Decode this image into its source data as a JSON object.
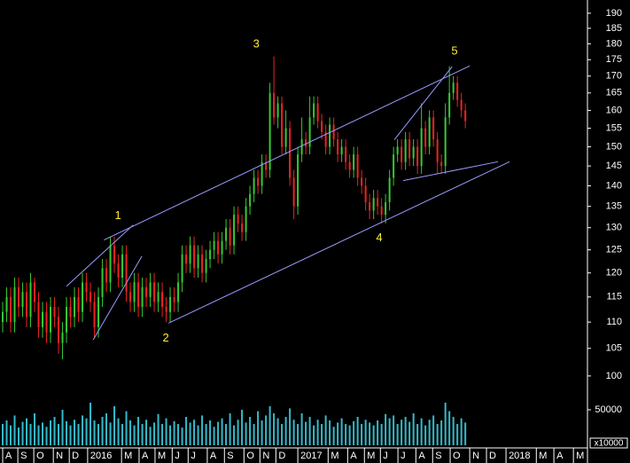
{
  "chart_data": {
    "type": "ohlc",
    "log_scale": true,
    "ylim": [
      97.5,
      194.5
    ],
    "yticks": [
      100,
      105,
      110,
      115,
      120,
      125,
      130,
      135,
      140,
      145,
      150,
      155,
      160,
      165,
      170,
      175,
      180,
      185,
      190
    ],
    "xlim": [
      -0.67,
      146.4
    ],
    "xticks": [
      {
        "value": 0,
        "label": "A"
      },
      {
        "value": 3.8,
        "label": "S"
      },
      {
        "value": 7.8,
        "label": "O"
      },
      {
        "value": 12.7,
        "label": "N"
      },
      {
        "value": 16.7,
        "label": "D"
      },
      {
        "value": 21.3,
        "label": "2016"
      },
      {
        "value": 29.8,
        "label": "M"
      },
      {
        "value": 34.2,
        "label": "A"
      },
      {
        "value": 38.2,
        "label": "M"
      },
      {
        "value": 42.5,
        "label": "J"
      },
      {
        "value": 46.5,
        "label": "J"
      },
      {
        "value": 51.3,
        "label": "A"
      },
      {
        "value": 55.6,
        "label": "S"
      },
      {
        "value": 60.5,
        "label": "O"
      },
      {
        "value": 64.5,
        "label": "N"
      },
      {
        "value": 68.5,
        "label": "D"
      },
      {
        "value": 74,
        "label": "2017"
      },
      {
        "value": 81.6,
        "label": "M"
      },
      {
        "value": 86.5,
        "label": "A"
      },
      {
        "value": 90.7,
        "label": "M"
      },
      {
        "value": 94.7,
        "label": "J"
      },
      {
        "value": 99.1,
        "label": "J"
      },
      {
        "value": 103.6,
        "label": "A"
      },
      {
        "value": 107.8,
        "label": "S"
      },
      {
        "value": 112.2,
        "label": "O"
      },
      {
        "value": 117.1,
        "label": "N"
      },
      {
        "value": 121.3,
        "label": "D"
      },
      {
        "value": 126.2,
        "label": "2018"
      },
      {
        "value": 133.8,
        "label": "M"
      },
      {
        "value": 138.2,
        "label": "A"
      },
      {
        "value": 143.1,
        "label": "M"
      }
    ],
    "up_color": "#33cc33",
    "down_color": "#ee2222",
    "bars": [
      [
        110,
        114,
        108,
        112
      ],
      [
        112,
        117,
        110,
        115
      ],
      [
        115,
        117,
        108,
        110
      ],
      [
        110,
        119,
        108,
        117
      ],
      [
        117,
        119,
        111,
        113
      ],
      [
        113,
        118,
        111,
        116
      ],
      [
        116,
        118,
        109,
        111
      ],
      [
        111,
        120,
        109,
        118
      ],
      [
        118,
        119,
        112,
        114
      ],
      [
        114,
        116,
        107,
        109
      ],
      [
        109,
        114,
        107,
        112
      ],
      [
        112,
        114,
        106,
        108
      ],
      [
        108,
        115,
        106,
        113
      ],
      [
        113,
        115,
        109,
        111
      ],
      [
        111,
        113,
        104,
        106
      ],
      [
        106,
        110,
        103,
        108
      ],
      [
        108,
        115,
        106,
        113
      ],
      [
        113,
        115,
        109,
        111
      ],
      [
        111,
        117,
        109,
        115
      ],
      [
        115,
        117,
        110,
        112
      ],
      [
        112,
        120,
        110,
        118
      ],
      [
        118,
        120,
        114,
        116
      ],
      [
        116,
        118,
        112,
        114
      ],
      [
        114,
        116,
        107,
        109
      ],
      [
        109,
        117,
        107,
        115
      ],
      [
        115,
        123,
        113,
        121
      ],
      [
        121,
        123,
        116,
        118
      ],
      [
        118,
        128,
        116,
        126
      ],
      [
        126,
        128,
        120,
        122
      ],
      [
        122,
        124,
        117,
        119
      ],
      [
        119,
        126,
        117,
        124
      ],
      [
        124,
        126,
        114,
        116
      ],
      [
        116,
        118,
        112,
        114
      ],
      [
        114,
        120,
        112,
        118
      ],
      [
        118,
        120,
        111,
        113
      ],
      [
        113,
        119,
        111,
        117
      ],
      [
        117,
        119,
        113,
        115
      ],
      [
        115,
        120,
        113,
        118
      ],
      [
        118,
        120,
        112,
        114
      ],
      [
        114,
        118,
        112,
        116
      ],
      [
        116,
        118,
        111,
        113
      ],
      [
        113,
        115,
        110,
        112
      ],
      [
        112,
        117,
        110,
        115
      ],
      [
        115,
        117,
        112,
        114
      ],
      [
        114,
        120,
        112,
        118
      ],
      [
        118,
        126,
        116,
        124
      ],
      [
        124,
        126,
        120,
        122
      ],
      [
        122,
        128,
        120,
        126
      ],
      [
        126,
        128,
        119,
        121
      ],
      [
        121,
        126,
        119,
        124
      ],
      [
        124,
        126,
        118,
        120
      ],
      [
        120,
        125,
        118,
        123
      ],
      [
        123,
        127,
        121,
        125
      ],
      [
        125,
        129,
        123,
        127
      ],
      [
        127,
        129,
        122,
        124
      ],
      [
        124,
        129,
        122,
        127
      ],
      [
        127,
        132,
        125,
        130
      ],
      [
        130,
        132,
        124,
        126
      ],
      [
        126,
        135,
        124,
        133
      ],
      [
        133,
        135,
        129,
        131
      ],
      [
        131,
        133,
        127,
        129
      ],
      [
        129,
        137,
        127,
        135
      ],
      [
        135,
        140,
        133,
        138
      ],
      [
        138,
        144,
        136,
        142
      ],
      [
        142,
        144,
        138,
        140
      ],
      [
        140,
        148,
        138,
        146
      ],
      [
        146,
        148,
        142,
        144
      ],
      [
        144,
        168,
        142,
        165
      ],
      [
        165,
        176,
        156,
        158
      ],
      [
        158,
        164,
        155,
        162
      ],
      [
        162,
        164,
        148,
        150
      ],
      [
        150,
        160,
        148,
        155
      ],
      [
        155,
        157,
        140,
        142
      ],
      [
        142,
        144,
        132,
        135
      ],
      [
        135,
        150,
        133,
        148
      ],
      [
        148,
        158,
        146,
        152
      ],
      [
        152,
        154,
        148,
        150
      ],
      [
        150,
        164,
        148,
        158
      ],
      [
        158,
        164,
        156,
        162
      ],
      [
        162,
        164,
        155,
        157
      ],
      [
        157,
        159,
        152,
        154
      ],
      [
        154,
        156,
        148,
        150
      ],
      [
        150,
        158,
        148,
        156
      ],
      [
        156,
        158,
        150,
        152
      ],
      [
        152,
        154,
        146,
        148
      ],
      [
        148,
        152,
        146,
        150
      ],
      [
        150,
        152,
        144,
        146
      ],
      [
        146,
        148,
        142,
        144
      ],
      [
        144,
        150,
        142,
        148
      ],
      [
        148,
        150,
        140,
        142
      ],
      [
        142,
        144,
        138,
        140
      ],
      [
        140,
        142,
        134,
        136
      ],
      [
        136,
        138,
        132,
        134
      ],
      [
        134,
        139,
        132,
        137
      ],
      [
        137,
        139,
        133,
        135
      ],
      [
        135,
        137,
        131,
        133
      ],
      [
        133,
        138,
        131,
        136
      ],
      [
        136,
        144,
        134,
        142
      ],
      [
        142,
        150,
        140,
        148
      ],
      [
        148,
        152,
        146,
        150
      ],
      [
        150,
        152,
        144,
        146
      ],
      [
        146,
        154,
        144,
        152
      ],
      [
        152,
        154,
        145,
        147
      ],
      [
        147,
        152,
        145,
        150
      ],
      [
        150,
        152,
        143,
        145
      ],
      [
        145,
        162,
        143,
        155
      ],
      [
        155,
        157,
        148,
        150
      ],
      [
        150,
        160,
        148,
        158
      ],
      [
        158,
        160,
        150,
        152
      ],
      [
        152,
        154,
        143,
        146
      ],
      [
        146,
        148,
        143,
        145
      ],
      [
        145,
        162,
        143,
        158
      ],
      [
        158,
        173,
        156,
        165
      ],
      [
        165,
        170,
        163,
        168
      ],
      [
        168,
        170,
        161,
        163
      ],
      [
        163,
        165,
        158,
        160
      ],
      [
        160,
        162,
        155,
        157
      ]
    ],
    "volume": {
      "color": "#33bbcc",
      "ylim": [
        0,
        62500
      ],
      "yticks": [
        50000
      ],
      "unit_label": "x10000",
      "values": [
        30000,
        35000,
        28000,
        42000,
        25000,
        33000,
        38000,
        30000,
        45000,
        28000,
        32000,
        26000,
        35000,
        40000,
        30000,
        50000,
        34000,
        28000,
        36000,
        30000,
        42000,
        38000,
        60000,
        35000,
        30000,
        40000,
        45000,
        32000,
        55000,
        38000,
        30000,
        48000,
        35000,
        28000,
        40000,
        30000,
        36000,
        26000,
        32000,
        44000,
        30000,
        38000,
        28000,
        34000,
        30000,
        25000,
        40000,
        32000,
        36000,
        28000,
        42000,
        30000,
        35000,
        26000,
        33000,
        38000,
        30000,
        45000,
        28000,
        36000,
        50000,
        32000,
        40000,
        30000,
        48000,
        35000,
        42000,
        55000,
        45000,
        38000,
        30000,
        40000,
        52000,
        36000,
        30000,
        45000,
        33000,
        40000,
        28000,
        36000,
        30000,
        42000,
        35000,
        26000,
        32000,
        38000,
        30000,
        28000,
        34000,
        40000,
        30000,
        36000,
        32000,
        28000,
        35000,
        30000,
        44000,
        38000,
        42000,
        30000,
        36000,
        40000,
        33000,
        45000,
        30000,
        38000,
        28000,
        36000,
        42000,
        30000,
        35000,
        60000,
        48000,
        40000,
        30000,
        38000,
        32000
      ]
    },
    "trendline_color": "#9a9aff",
    "trendlines": [
      {
        "x": [
          25.4,
          117.1
        ],
        "y": [
          127.2,
          173.1
        ]
      },
      {
        "x": [
          41.6,
          127.1
        ],
        "y": [
          109.8,
          146.1
        ]
      },
      {
        "x": [
          16,
          32.7
        ],
        "y": [
          117.2,
          130.6
        ]
      },
      {
        "x": [
          22.7,
          34.9
        ],
        "y": [
          106.6,
          123.6
        ]
      },
      {
        "x": [
          98.2,
          112.7
        ],
        "y": [
          151.9,
          172.9
        ]
      },
      {
        "x": [
          100.4,
          124.2
        ],
        "y": [
          141.3,
          146.1
        ]
      }
    ],
    "annotation_color": "#ffee33",
    "annotations": [
      {
        "text": "1",
        "x": 28.9,
        "y": 132.7
      },
      {
        "text": "2",
        "x": 40.9,
        "y": 106.9
      },
      {
        "text": "3",
        "x": 63.6,
        "y": 179.8
      },
      {
        "text": "4",
        "x": 94.4,
        "y": 127.6
      },
      {
        "text": "5",
        "x": 113.3,
        "y": 177.6
      }
    ]
  }
}
